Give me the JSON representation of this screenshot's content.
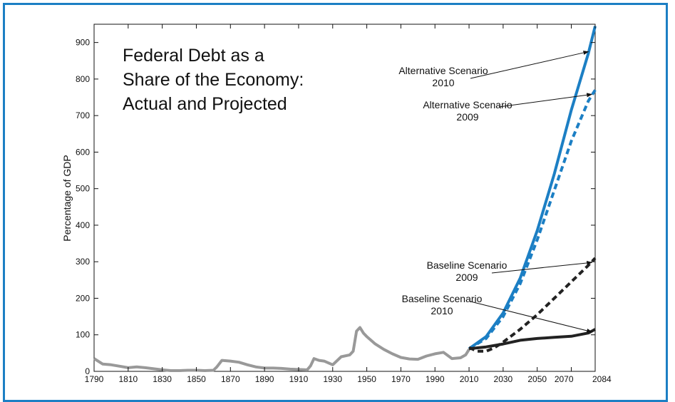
{
  "chart_data": {
    "type": "line",
    "title_lines": [
      "Federal Debt as a",
      "Share of the Economy:",
      "Actual and Projected"
    ],
    "ylabel": "Percentage of GDP",
    "xlabel": "",
    "xlim": [
      1790,
      2084
    ],
    "ylim": [
      0,
      950
    ],
    "x_ticks": [
      1790,
      1810,
      1830,
      1850,
      1870,
      1890,
      1910,
      1930,
      1950,
      1970,
      1990,
      2010,
      2030,
      2050,
      2070,
      2084
    ],
    "y_ticks": [
      0,
      100,
      200,
      300,
      400,
      500,
      600,
      700,
      800,
      900
    ],
    "grid": false,
    "series": [
      {
        "name": "",
        "color": "#999999",
        "style": "solid",
        "x": [
          1790,
          1795,
          1800,
          1805,
          1810,
          1815,
          1820,
          1825,
          1830,
          1835,
          1840,
          1845,
          1850,
          1855,
          1860,
          1862,
          1865,
          1870,
          1875,
          1880,
          1885,
          1890,
          1895,
          1900,
          1905,
          1910,
          1915,
          1917,
          1919,
          1922,
          1925,
          1930,
          1935,
          1940,
          1942,
          1944,
          1946,
          1948,
          1950,
          1955,
          1960,
          1965,
          1970,
          1975,
          1980,
          1985,
          1990,
          1995,
          2000,
          2005,
          2008,
          2010
        ],
        "y": [
          35,
          20,
          18,
          14,
          10,
          12,
          10,
          7,
          4,
          2,
          2,
          3,
          3,
          2,
          3,
          12,
          30,
          28,
          25,
          18,
          12,
          9,
          9,
          8,
          6,
          5,
          4,
          15,
          35,
          30,
          28,
          18,
          40,
          45,
          55,
          110,
          120,
          105,
          95,
          75,
          60,
          48,
          38,
          34,
          33,
          42,
          48,
          52,
          35,
          37,
          45,
          60
        ]
      },
      {
        "name": "Alternative Scenario 2010",
        "color": "#1c7fc4",
        "style": "solid",
        "x": [
          2010,
          2020,
          2030,
          2040,
          2050,
          2060,
          2070,
          2080,
          2084
        ],
        "y": [
          62,
          95,
          160,
          255,
          385,
          540,
          715,
          870,
          945
        ]
      },
      {
        "name": "Alternative Scenario 2009",
        "color": "#1c7fc4",
        "style": "dashed",
        "x": [
          2010,
          2020,
          2030,
          2040,
          2050,
          2060,
          2070,
          2080,
          2084
        ],
        "y": [
          62,
          90,
          150,
          240,
          360,
          495,
          630,
          740,
          770
        ]
      },
      {
        "name": "Baseline Scenario 2009",
        "color": "#222222",
        "style": "dashed",
        "x": [
          2010,
          2015,
          2020,
          2025,
          2030,
          2040,
          2050,
          2060,
          2070,
          2080,
          2084
        ],
        "y": [
          65,
          55,
          55,
          65,
          80,
          115,
          155,
          200,
          245,
          290,
          310
        ]
      },
      {
        "name": "Baseline Scenario 2010",
        "color": "#222222",
        "style": "solid",
        "x": [
          2010,
          2020,
          2030,
          2040,
          2050,
          2060,
          2070,
          2080,
          2084
        ],
        "y": [
          62,
          67,
          75,
          85,
          90,
          93,
          96,
          105,
          115
        ]
      }
    ],
    "annotations": [
      {
        "lines": [
          "Alternative Scenario",
          "2010"
        ],
        "target": [
          2080,
          875
        ]
      },
      {
        "lines": [
          "Alternative Scenario",
          "2009"
        ],
        "target": [
          2082,
          758
        ]
      },
      {
        "lines": [
          "Baseline Scenario",
          "2009"
        ],
        "target": [
          2082,
          298
        ]
      },
      {
        "lines": [
          "Baseline Scenario",
          "2010"
        ],
        "target": [
          2082,
          108
        ]
      }
    ]
  }
}
